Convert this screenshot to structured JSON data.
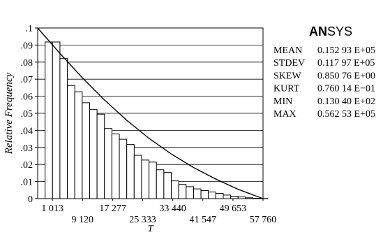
{
  "chart_data": {
    "type": "bar",
    "ylabel": "Relative Frequency",
    "xlabel": "T",
    "ylim": [
      0,
      0.1
    ],
    "xlim": [
      -2957,
      57760
    ],
    "y_ticks": [
      ".1",
      ".09",
      ".08",
      ".07",
      ".06",
      ".05",
      ".04",
      ".03",
      ".02",
      ".01",
      "0"
    ],
    "x_ticks": [
      {
        "value": 1013,
        "label": "1 013",
        "row": 0
      },
      {
        "value": 9120,
        "label": "9 120",
        "row": 1
      },
      {
        "value": 17277,
        "label": "17 277",
        "row": 0
      },
      {
        "value": 25333,
        "label": "25 333",
        "row": 1
      },
      {
        "value": 33440,
        "label": "33 440",
        "row": 0
      },
      {
        "value": 41547,
        "label": "41 547",
        "row": 1
      },
      {
        "value": 49653,
        "label": "49 653",
        "row": 0
      },
      {
        "value": 57760,
        "label": "57 760",
        "row": 1
      }
    ],
    "bins": {
      "start": -957,
      "width": 2000,
      "values": [
        0.0918,
        0.0918,
        0.0821,
        0.0663,
        0.0626,
        0.0562,
        0.0522,
        0.0495,
        0.0411,
        0.0379,
        0.0348,
        0.0317,
        0.0254,
        0.0226,
        0.0214,
        0.0169,
        0.0153,
        0.0104,
        0.0083,
        0.007,
        0.0057,
        0.0047,
        0.0039,
        0.0031,
        0.0021,
        0.0014,
        0.001,
        0.0005,
        0.0002,
        0.0001
      ]
    },
    "fit_curve": {
      "x": [
        -2957,
        3000,
        9000,
        15000,
        21000,
        27000,
        33000,
        39000,
        45000,
        51000,
        57760
      ],
      "y": [
        0.1,
        0.0852,
        0.071,
        0.0579,
        0.046,
        0.0354,
        0.0262,
        0.0183,
        0.0115,
        0.0055,
        0.0
      ]
    },
    "grid": "horizontal"
  },
  "logo": {
    "bold": "AN",
    "rest": "SYS"
  },
  "stats": [
    {
      "name": "MEAN",
      "value": "0.152 93 E+05"
    },
    {
      "name": "STDEV",
      "value": "0.117 97 E+05"
    },
    {
      "name": "SKEW",
      "value": "0.850 76 E+00"
    },
    {
      "name": "KURT",
      "value": "0.760 14 E−01"
    },
    {
      "name": "MIN",
      "value": "0.130 40 E+02"
    },
    {
      "name": "MAX",
      "value": "0.562 53 E+05"
    }
  ]
}
